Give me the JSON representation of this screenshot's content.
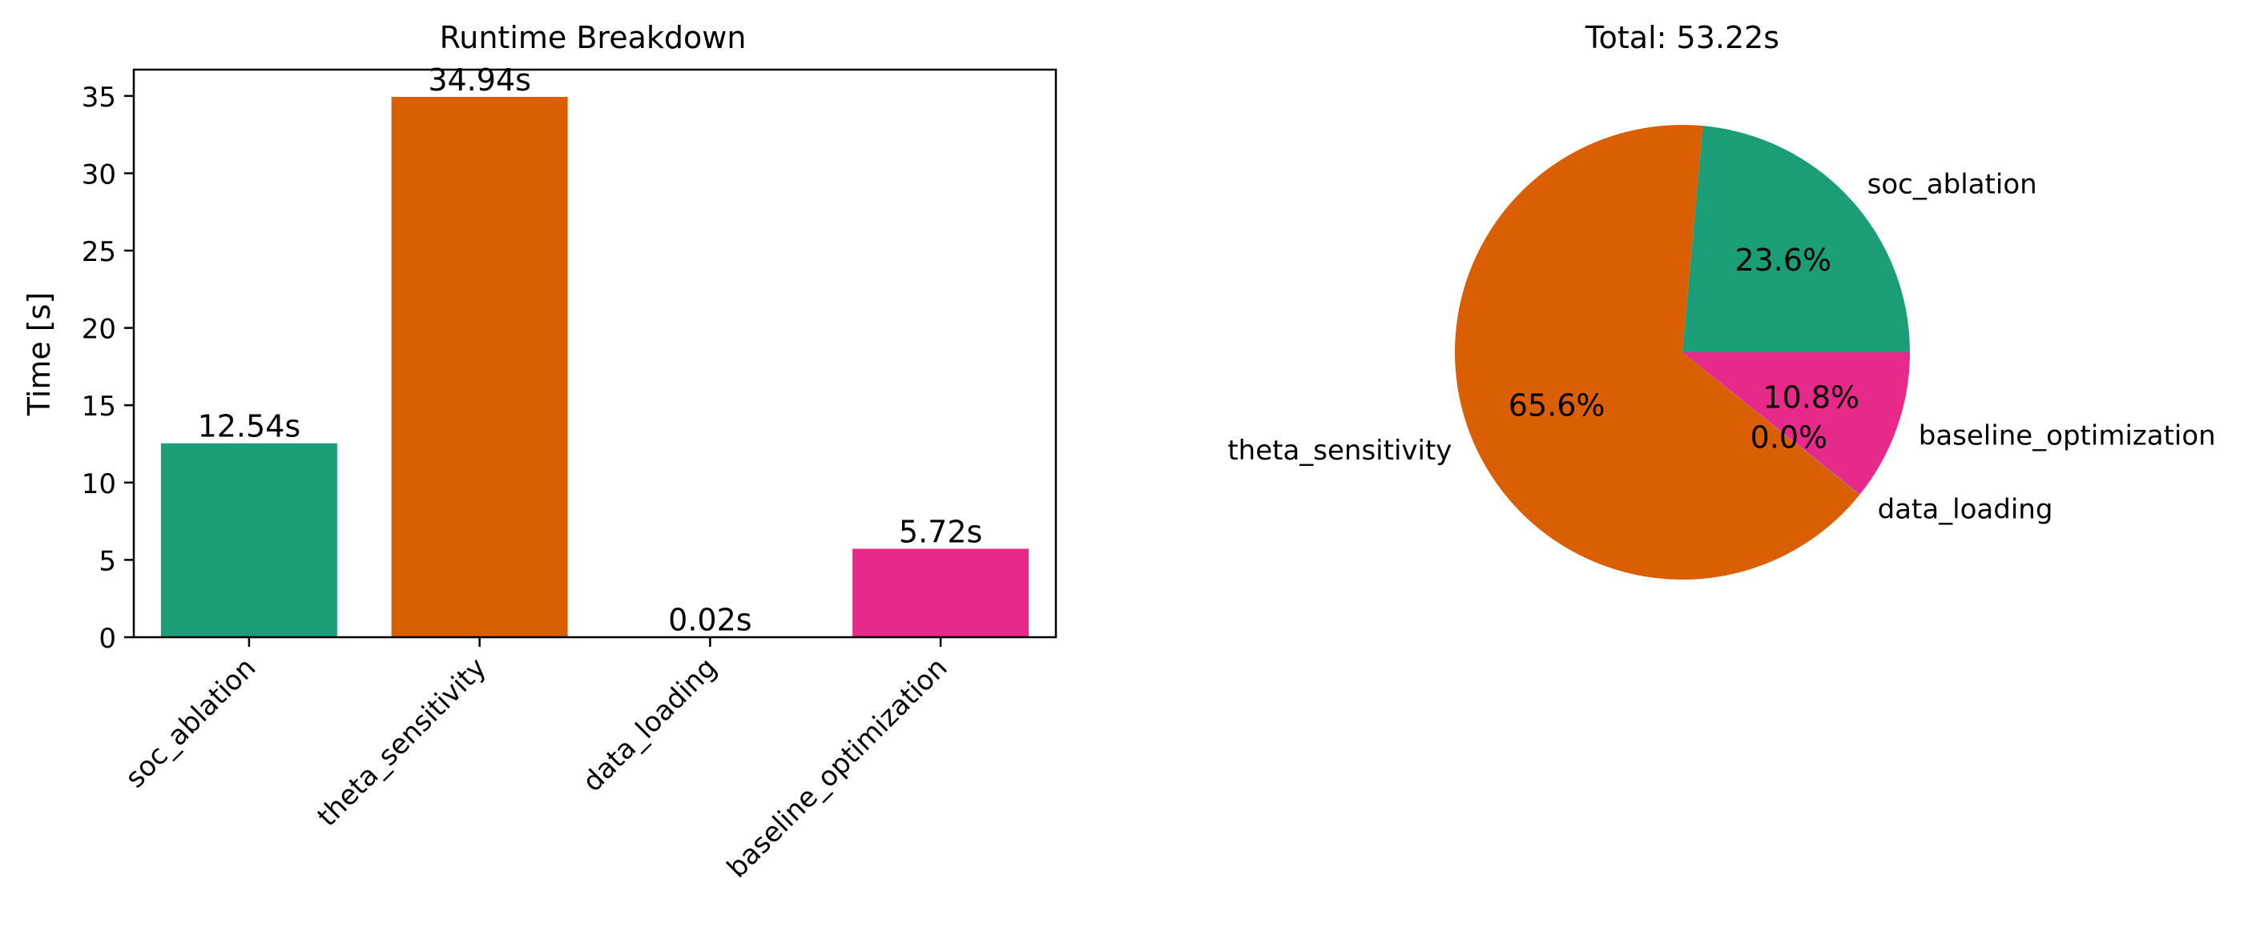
{
  "chart_data": [
    {
      "type": "bar",
      "title": "Runtime Breakdown",
      "xlabel": "",
      "ylabel": "Time [s]",
      "categories": [
        "soc_ablation",
        "theta_sensitivity",
        "data_loading",
        "baseline_optimization"
      ],
      "values": [
        12.54,
        34.94,
        0.02,
        5.72
      ],
      "value_labels": [
        "12.54s",
        "34.94s",
        "0.02s",
        "5.72s"
      ],
      "colors": [
        "#1b9e77",
        "#d95f02",
        "#7570b3",
        "#e7298a"
      ],
      "ylim": [
        0,
        36.7
      ],
      "yticks": [
        0,
        5,
        10,
        15,
        20,
        25,
        30,
        35
      ],
      "grid": false,
      "xtick_rotation": 45
    },
    {
      "type": "pie",
      "title": "Total: 53.22s",
      "labels": [
        "soc_ablation",
        "theta_sensitivity",
        "data_loading",
        "baseline_optimization"
      ],
      "values": [
        12.54,
        34.94,
        0.02,
        5.72
      ],
      "percent_labels": [
        "23.6%",
        "65.6%",
        "0.0%",
        "10.8%"
      ],
      "colors": [
        "#1b9e77",
        "#d95f02",
        "#7570b3",
        "#e7298a"
      ],
      "start_angle": 0,
      "direction": "counterclockwise"
    }
  ]
}
